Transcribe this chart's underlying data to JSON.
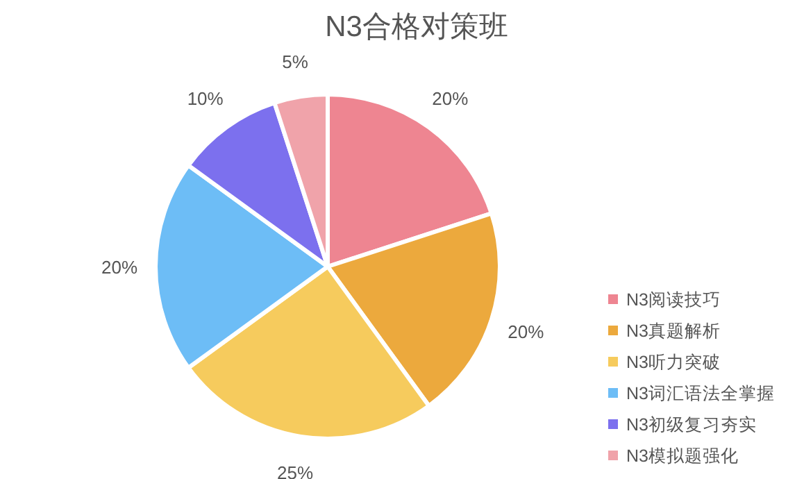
{
  "chart_data": {
    "type": "pie",
    "title": "N3合格对策班",
    "categories": [
      "N3阅读技巧",
      "N3真题解析",
      "N3听力突破",
      "N3词汇语法全掌握",
      "N3初级复习夯实",
      "N3模拟题强化"
    ],
    "values": [
      20,
      20,
      25,
      20,
      10,
      5
    ],
    "colors": [
      "#ee8591",
      "#eca93d",
      "#f6cb5d",
      "#6dbdf6",
      "#7c70ee",
      "#f0a3aa"
    ],
    "value_labels": [
      "20%",
      "20%",
      "25%",
      "20%",
      "10%",
      "5%"
    ],
    "legend": "bottom right"
  }
}
